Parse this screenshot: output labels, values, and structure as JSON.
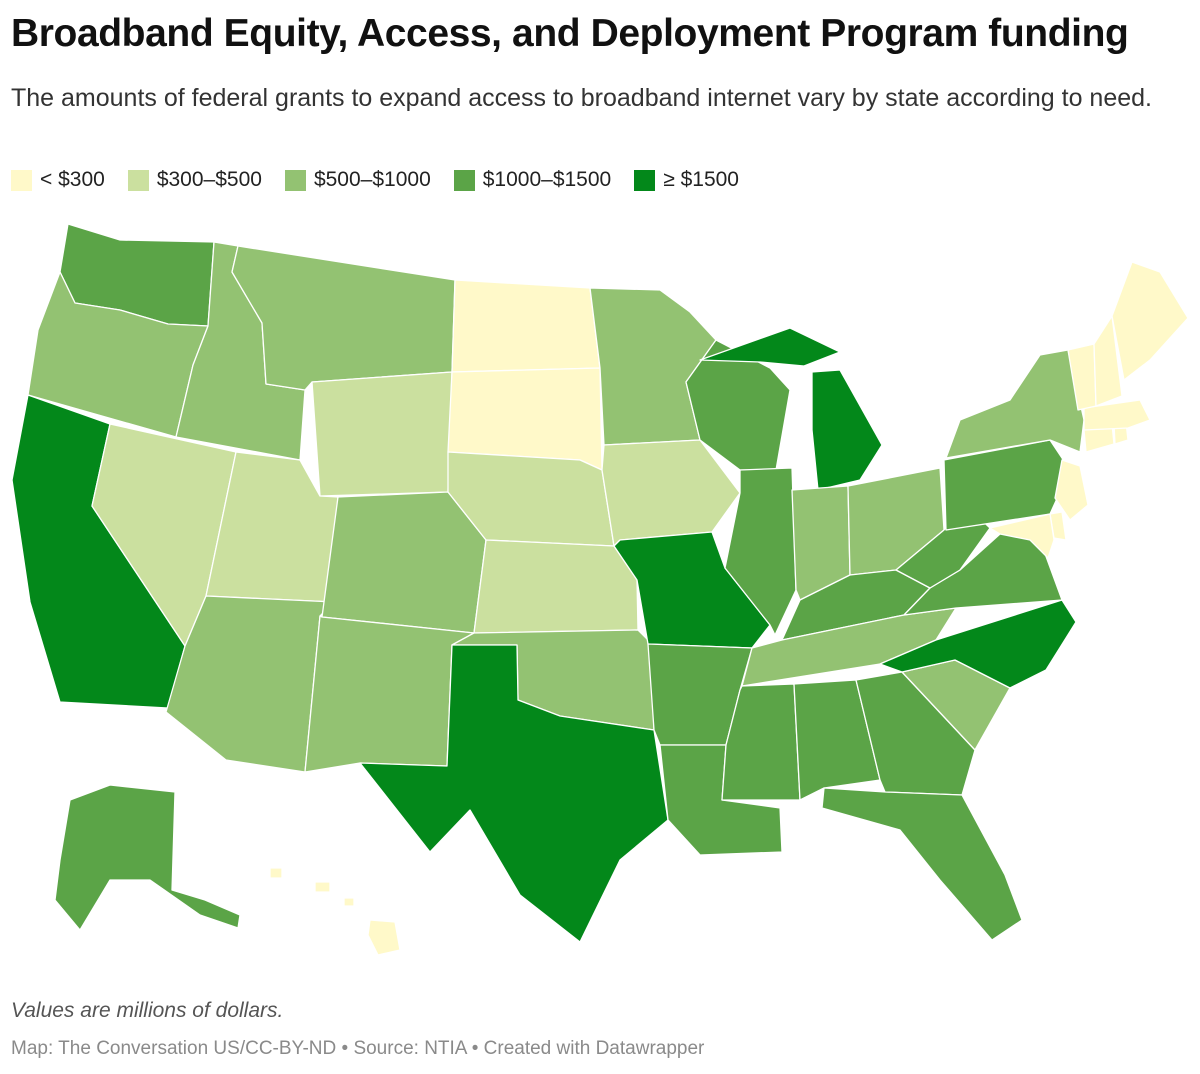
{
  "title": "Broadband Equity, Access, and Deployment Program funding",
  "subtitle": "The amounts of federal grants to expand access to broadband internet vary by state according to need.",
  "legend": [
    {
      "label": "< $300",
      "color": "#fff9c9"
    },
    {
      "label": "$300–$500",
      "color": "#cbe09f"
    },
    {
      "label": "$500–$1000",
      "color": "#93c272"
    },
    {
      "label": "$1000–$1500",
      "color": "#5ba447"
    },
    {
      "label": "≥ $1500",
      "color": "#03881a"
    }
  ],
  "chart_data": {
    "type": "choropleth",
    "unit": "millions of dollars",
    "bins": [
      "< $300",
      "$300–$500",
      "$500–$1000",
      "$1000–$1500",
      "≥ $1500"
    ],
    "states": {
      "WA": "$1000–$1500",
      "OR": "$500–$1000",
      "CA": "≥ $1500",
      "NV": "$300–$500",
      "ID": "$500–$1000",
      "MT": "$500–$1000",
      "WY": "$300–$500",
      "UT": "$300–$500",
      "AZ": "$500–$1000",
      "CO": "$500–$1000",
      "NM": "$500–$1000",
      "ND": "< $300",
      "SD": "< $300",
      "NE": "$300–$500",
      "KS": "$300–$500",
      "OK": "$500–$1000",
      "TX": "≥ $1500",
      "MN": "$500–$1000",
      "IA": "$300–$500",
      "MO": "≥ $1500",
      "AR": "$1000–$1500",
      "LA": "$1000–$1500",
      "WI": "$1000–$1500",
      "IL": "$1000–$1500",
      "MI": "≥ $1500",
      "IN": "$500–$1000",
      "OH": "$500–$1000",
      "KY": "$1000–$1500",
      "TN": "$500–$1000",
      "MS": "$1000–$1500",
      "AL": "$1000–$1500",
      "GA": "$1000–$1500",
      "FL": "$1000–$1500",
      "SC": "$500–$1000",
      "NC": "≥ $1500",
      "VA": "$1000–$1500",
      "WV": "$1000–$1500",
      "PA": "$1000–$1500",
      "NY": "$500–$1000",
      "NJ": "< $300",
      "DE": "< $300",
      "MD": "< $300",
      "CT": "< $300",
      "RI": "< $300",
      "MA": "< $300",
      "VT": "< $300",
      "NH": "< $300",
      "ME": "< $300",
      "AK": "$1000–$1500",
      "HI": "< $300"
    }
  },
  "notes": "Values are millions of dollars.",
  "footer": "Map: The Conversation US/CC-BY-ND • Source: NTIA • Created with Datawrapper"
}
